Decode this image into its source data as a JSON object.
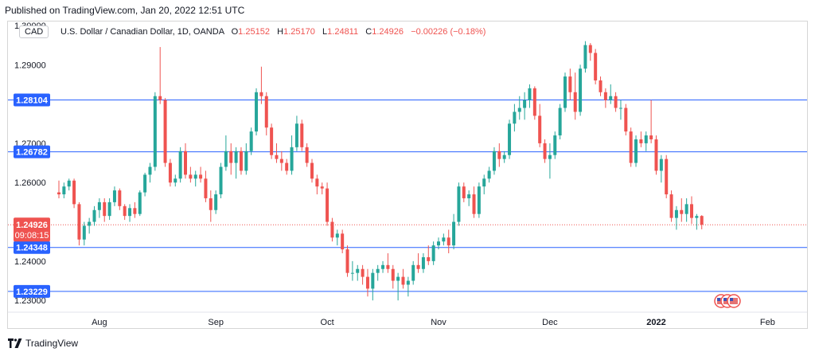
{
  "header": {
    "published": "Published on TradingView.com, Jan 20, 2022 12:51 UTC"
  },
  "symbol": {
    "badge": "CAD",
    "name": "U.S. Dollar / Canadian Dollar, 1D, OANDA",
    "o_label": "O",
    "o_value": "1.25152",
    "h_label": "H",
    "h_value": "1.25170",
    "l_label": "L",
    "l_value": "1.24811",
    "c_label": "C",
    "c_value": "1.24926",
    "change": "−0.00226 (−0.18%)"
  },
  "footer": {
    "brand": "TradingView",
    "logo_icon": "tradingview-logo-icon"
  },
  "colors": {
    "up": "#26a69a",
    "down": "#ef5350",
    "level": "#2962ff",
    "current": "#ef5350"
  },
  "chart_data": {
    "type": "candlestick",
    "title": "U.S. Dollar / Canadian Dollar, 1D, OANDA",
    "ylim": [
      1.227,
      1.301
    ],
    "y_ticks": [
      "1.30000",
      "1.29000",
      "1.27000",
      "1.26000",
      "1.24000",
      "1.23000"
    ],
    "x_ticks": [
      {
        "label": "Aug",
        "index": 8
      },
      {
        "label": "Sep",
        "index": 31
      },
      {
        "label": "Oct",
        "index": 53
      },
      {
        "label": "Nov",
        "index": 75
      },
      {
        "label": "Dec",
        "index": 97
      },
      {
        "label": "2022",
        "index": 118
      },
      {
        "label": "Feb",
        "index": 140
      }
    ],
    "levels": [
      {
        "value": 1.28104,
        "label": "1.28104"
      },
      {
        "value": 1.26782,
        "label": "1.26782"
      },
      {
        "value": 1.24348,
        "label": "1.24348"
      },
      {
        "value": 1.23229,
        "label": "1.23229"
      }
    ],
    "current": {
      "value": 1.24926,
      "label": "1.24926",
      "countdown": "09:08:15"
    },
    "candles": [
      [
        1.2575,
        1.2605,
        1.256,
        1.257
      ],
      [
        1.257,
        1.26,
        1.256,
        1.259
      ],
      [
        1.259,
        1.261,
        1.258,
        1.2605
      ],
      [
        1.2605,
        1.261,
        1.2535,
        1.2545
      ],
      [
        1.2545,
        1.255,
        1.244,
        1.2455
      ],
      [
        1.2455,
        1.25,
        1.244,
        1.249
      ],
      [
        1.249,
        1.251,
        1.247,
        1.25
      ],
      [
        1.25,
        1.254,
        1.249,
        1.253
      ],
      [
        1.253,
        1.256,
        1.251,
        1.255
      ],
      [
        1.255,
        1.256,
        1.25,
        1.2515
      ],
      [
        1.2515,
        1.256,
        1.2505,
        1.255
      ],
      [
        1.255,
        1.259,
        1.254,
        1.258
      ],
      [
        1.258,
        1.2585,
        1.253,
        1.254
      ],
      [
        1.254,
        1.2545,
        1.2505,
        1.2515
      ],
      [
        1.2515,
        1.2545,
        1.25,
        1.2535
      ],
      [
        1.2535,
        1.255,
        1.251,
        1.252
      ],
      [
        1.252,
        1.258,
        1.2515,
        1.2575
      ],
      [
        1.2575,
        1.2625,
        1.2565,
        1.262
      ],
      [
        1.262,
        1.265,
        1.26,
        1.264
      ],
      [
        1.264,
        1.283,
        1.263,
        1.282
      ],
      [
        1.282,
        1.2945,
        1.28,
        1.281
      ],
      [
        1.281,
        1.2815,
        1.264,
        1.265
      ],
      [
        1.265,
        1.266,
        1.259,
        1.26
      ],
      [
        1.26,
        1.262,
        1.259,
        1.261
      ],
      [
        1.261,
        1.269,
        1.26,
        1.268
      ],
      [
        1.268,
        1.27,
        1.261,
        1.262
      ],
      [
        1.262,
        1.264,
        1.26,
        1.261
      ],
      [
        1.261,
        1.263,
        1.259,
        1.262
      ],
      [
        1.262,
        1.264,
        1.26,
        1.261
      ],
      [
        1.261,
        1.263,
        1.255,
        1.256
      ],
      [
        1.256,
        1.258,
        1.25,
        1.253
      ],
      [
        1.253,
        1.258,
        1.252,
        1.257
      ],
      [
        1.257,
        1.265,
        1.256,
        1.264
      ],
      [
        1.264,
        1.272,
        1.263,
        1.268
      ],
      [
        1.268,
        1.27,
        1.262,
        1.265
      ],
      [
        1.265,
        1.269,
        1.261,
        1.268
      ],
      [
        1.268,
        1.269,
        1.262,
        1.263
      ],
      [
        1.263,
        1.27,
        1.262,
        1.268
      ],
      [
        1.268,
        1.274,
        1.267,
        1.273
      ],
      [
        1.273,
        1.284,
        1.272,
        1.283
      ],
      [
        1.283,
        1.2895,
        1.28,
        1.282
      ],
      [
        1.282,
        1.283,
        1.272,
        1.274
      ],
      [
        1.274,
        1.275,
        1.266,
        1.267
      ],
      [
        1.267,
        1.27,
        1.265,
        1.266
      ],
      [
        1.266,
        1.268,
        1.263,
        1.265
      ],
      [
        1.265,
        1.266,
        1.262,
        1.263
      ],
      [
        1.263,
        1.272,
        1.262,
        1.269
      ],
      [
        1.269,
        1.277,
        1.268,
        1.275
      ],
      [
        1.275,
        1.276,
        1.268,
        1.269
      ],
      [
        1.269,
        1.27,
        1.264,
        1.265
      ],
      [
        1.265,
        1.266,
        1.26,
        1.261
      ],
      [
        1.261,
        1.262,
        1.257,
        1.259
      ],
      [
        1.259,
        1.26,
        1.257,
        1.2585
      ],
      [
        1.2585,
        1.26,
        1.249,
        1.25
      ],
      [
        1.25,
        1.251,
        1.245,
        1.246
      ],
      [
        1.246,
        1.248,
        1.244,
        1.247
      ],
      [
        1.247,
        1.248,
        1.242,
        1.243
      ],
      [
        1.243,
        1.244,
        1.236,
        1.237
      ],
      [
        1.237,
        1.24,
        1.235,
        1.237
      ],
      [
        1.237,
        1.239,
        1.235,
        1.238
      ],
      [
        1.238,
        1.239,
        1.234,
        1.236
      ],
      [
        1.236,
        1.238,
        1.231,
        1.233
      ],
      [
        1.233,
        1.238,
        1.23,
        1.237
      ],
      [
        1.237,
        1.239,
        1.235,
        1.238
      ],
      [
        1.238,
        1.24,
        1.237,
        1.239
      ],
      [
        1.239,
        1.242,
        1.237,
        1.238
      ],
      [
        1.238,
        1.239,
        1.233,
        1.235
      ],
      [
        1.235,
        1.237,
        1.23,
        1.236
      ],
      [
        1.236,
        1.238,
        1.233,
        1.234
      ],
      [
        1.234,
        1.236,
        1.231,
        1.235
      ],
      [
        1.235,
        1.24,
        1.234,
        1.239
      ],
      [
        1.239,
        1.242,
        1.237,
        1.238
      ],
      [
        1.238,
        1.242,
        1.237,
        1.241
      ],
      [
        1.241,
        1.244,
        1.239,
        1.24
      ],
      [
        1.24,
        1.245,
        1.239,
        1.244
      ],
      [
        1.244,
        1.246,
        1.243,
        1.245
      ],
      [
        1.245,
        1.247,
        1.244,
        1.246
      ],
      [
        1.246,
        1.248,
        1.242,
        1.244
      ],
      [
        1.244,
        1.252,
        1.243,
        1.25
      ],
      [
        1.25,
        1.26,
        1.249,
        1.259
      ],
      [
        1.259,
        1.26,
        1.255,
        1.256
      ],
      [
        1.256,
        1.258,
        1.254,
        1.257
      ],
      [
        1.257,
        1.259,
        1.251,
        1.252
      ],
      [
        1.252,
        1.26,
        1.251,
        1.259
      ],
      [
        1.259,
        1.262,
        1.257,
        1.261
      ],
      [
        1.261,
        1.264,
        1.26,
        1.263
      ],
      [
        1.263,
        1.269,
        1.262,
        1.268
      ],
      [
        1.268,
        1.27,
        1.264,
        1.266
      ],
      [
        1.266,
        1.268,
        1.265,
        1.267
      ],
      [
        1.267,
        1.276,
        1.266,
        1.275
      ],
      [
        1.275,
        1.28,
        1.273,
        1.278
      ],
      [
        1.278,
        1.282,
        1.276,
        1.279
      ],
      [
        1.279,
        1.283,
        1.276,
        1.281
      ],
      [
        1.281,
        1.285,
        1.279,
        1.284
      ],
      [
        1.284,
        1.2845,
        1.276,
        1.277
      ],
      [
        1.277,
        1.28,
        1.269,
        1.27
      ],
      [
        1.27,
        1.271,
        1.265,
        1.266
      ],
      [
        1.266,
        1.27,
        1.261,
        1.267
      ],
      [
        1.267,
        1.273,
        1.266,
        1.272
      ],
      [
        1.272,
        1.28,
        1.271,
        1.279
      ],
      [
        1.279,
        1.288,
        1.278,
        1.287
      ],
      [
        1.287,
        1.289,
        1.281,
        1.283
      ],
      [
        1.283,
        1.288,
        1.276,
        1.278
      ],
      [
        1.278,
        1.29,
        1.277,
        1.289
      ],
      [
        1.289,
        1.296,
        1.288,
        1.295
      ],
      [
        1.295,
        1.2955,
        1.291,
        1.293
      ],
      [
        1.293,
        1.294,
        1.285,
        1.286
      ],
      [
        1.286,
        1.287,
        1.282,
        1.283
      ],
      [
        1.283,
        1.284,
        1.279,
        1.281
      ],
      [
        1.281,
        1.285,
        1.28,
        1.282
      ],
      [
        1.282,
        1.283,
        1.278,
        1.279
      ],
      [
        1.279,
        1.281,
        1.276,
        1.279
      ],
      [
        1.279,
        1.28,
        1.272,
        1.273
      ],
      [
        1.273,
        1.274,
        1.264,
        1.265
      ],
      [
        1.265,
        1.272,
        1.264,
        1.271
      ],
      [
        1.271,
        1.273,
        1.269,
        1.27
      ],
      [
        1.27,
        1.273,
        1.268,
        1.272
      ],
      [
        1.272,
        1.281,
        1.27,
        1.271
      ],
      [
        1.271,
        1.272,
        1.262,
        1.263
      ],
      [
        1.263,
        1.267,
        1.26,
        1.266
      ],
      [
        1.266,
        1.267,
        1.256,
        1.257
      ],
      [
        1.257,
        1.258,
        1.25,
        1.251
      ],
      [
        1.251,
        1.254,
        1.248,
        1.253
      ],
      [
        1.253,
        1.256,
        1.25,
        1.252
      ],
      [
        1.252,
        1.256,
        1.25,
        1.2545
      ],
      [
        1.2545,
        1.2565,
        1.2495,
        1.251
      ],
      [
        1.251,
        1.252,
        1.248,
        1.2515
      ],
      [
        1.2515,
        1.2517,
        1.2481,
        1.2493
      ]
    ]
  }
}
